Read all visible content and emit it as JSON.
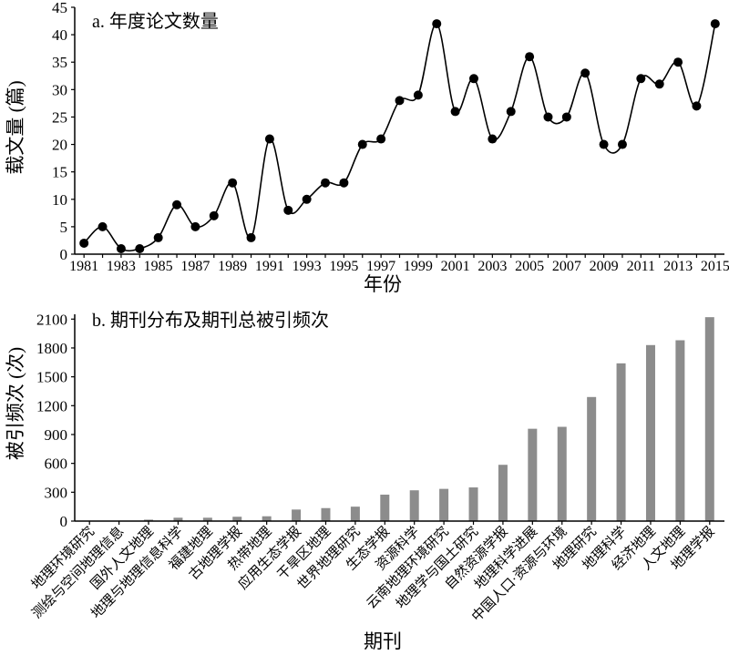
{
  "chart_data": [
    {
      "type": "line",
      "title": "a. 年度论文数量",
      "xlabel": "年份",
      "ylabel": "载文量 (篇)",
      "x": [
        1981,
        1982,
        1983,
        1984,
        1985,
        1986,
        1987,
        1988,
        1989,
        1990,
        1991,
        1992,
        1993,
        1994,
        1995,
        1996,
        1997,
        1998,
        1999,
        2000,
        2001,
        2002,
        2003,
        2004,
        2005,
        2006,
        2007,
        2008,
        2009,
        2010,
        2011,
        2012,
        2013,
        2014,
        2015
      ],
      "y": [
        2,
        5,
        1,
        1,
        3,
        9,
        5,
        7,
        13,
        3,
        21,
        8,
        10,
        13,
        13,
        20,
        21,
        28,
        29,
        42,
        26,
        32,
        21,
        26,
        36,
        25,
        25,
        33,
        20,
        20,
        32,
        31,
        35,
        27,
        42
      ],
      "xtick_labels": [
        "1981",
        "1983",
        "1985",
        "1987",
        "1989",
        "1991",
        "1993",
        "1995",
        "1997",
        "1999",
        "2001",
        "2003",
        "2005",
        "2007",
        "2009",
        "2011",
        "2013",
        "2015"
      ],
      "ytick_labels": [
        "0",
        "5",
        "10",
        "15",
        "20",
        "25",
        "30",
        "35",
        "40",
        "45"
      ],
      "xlim": [
        1980.5,
        2015.5
      ],
      "ylim": [
        0,
        45
      ],
      "smooth": true,
      "grid": false,
      "line_color": "#000000",
      "marker_color": "#000000"
    },
    {
      "type": "bar",
      "title": "b. 期刊分布及期刊总被引频次",
      "xlabel": "期刊",
      "ylabel": "被引频次 (次)",
      "categories": [
        "地理环境研究",
        "测绘与空间地理信息",
        "国外人文地理",
        "地理与地理信息科学",
        "福建地理",
        "古地理学报",
        "热带地理",
        "应用生态学报",
        "干旱区地理",
        "世界地理研究",
        "生态学报",
        "资源科学",
        "云南地理环境研究",
        "地理学与国土研究",
        "自然资源学报",
        "地理科学进展",
        "中国人口·资源与环境",
        "地理研究",
        "地理科学",
        "经济地理",
        "人文地理",
        "地理学报"
      ],
      "values": [
        0,
        0,
        15,
        35,
        35,
        45,
        50,
        120,
        135,
        150,
        275,
        320,
        335,
        350,
        585,
        960,
        980,
        1290,
        1640,
        1830,
        1880,
        2120
      ],
      "ytick_labels": [
        "0",
        "300",
        "600",
        "900",
        "1200",
        "1500",
        "1800",
        "2100"
      ],
      "ylim": [
        0,
        2150
      ],
      "grid": false,
      "bar_color": "#8c8c8c"
    }
  ]
}
